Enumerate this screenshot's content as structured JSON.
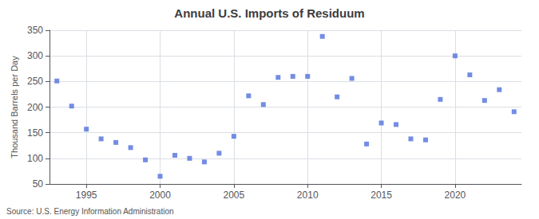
{
  "chart_data": {
    "type": "scatter",
    "title": "Annual U.S. Imports of Residuum",
    "ylabel": "Thousand Barrels per Day",
    "source": "Source: U.S. Energy Information Administration",
    "x": [
      1993,
      1994,
      1995,
      1996,
      1997,
      1998,
      1999,
      2000,
      2001,
      2002,
      2003,
      2004,
      2005,
      2006,
      2007,
      2008,
      2009,
      2010,
      2011,
      2012,
      2013,
      2014,
      2015,
      2016,
      2017,
      2018,
      2019,
      2020,
      2021,
      2022,
      2023,
      2024
    ],
    "values": [
      251,
      202,
      157,
      138,
      131,
      121,
      97,
      65,
      106,
      100,
      93,
      110,
      143,
      222,
      205,
      258,
      260,
      260,
      338,
      220,
      256,
      128,
      169,
      166,
      138,
      136,
      215,
      300,
      263,
      213,
      234,
      191
    ],
    "marker": "square",
    "xlim": [
      1992.5,
      2024.5
    ],
    "xticks": [
      1995,
      2000,
      2005,
      2010,
      2015,
      2020
    ],
    "ylim": [
      50,
      350
    ],
    "yticks": [
      50,
      100,
      150,
      200,
      250,
      300,
      350
    ],
    "grid": true
  }
}
